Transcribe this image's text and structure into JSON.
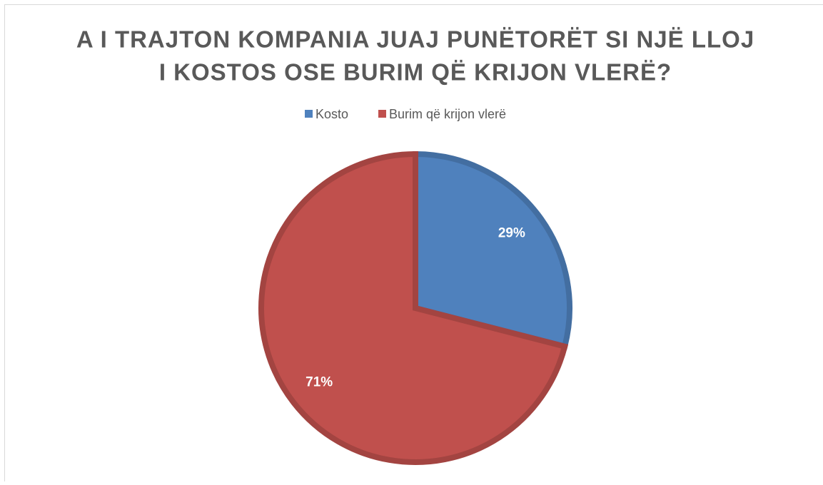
{
  "chart_data": {
    "type": "pie",
    "title": [
      "A I TRAJTON KOMPANIA JUAJ PUNËTORËT SI NJË LLOJ",
      "I KOSTOS OSE BURIM QË KRIJON VLERË?"
    ],
    "categories": [
      "Kosto",
      "Burim që krijon vlerë"
    ],
    "values": [
      29,
      71
    ],
    "value_labels": [
      "29%",
      "71%"
    ],
    "colors": [
      "#4f81bd",
      "#c0504d"
    ],
    "legend": "top"
  }
}
